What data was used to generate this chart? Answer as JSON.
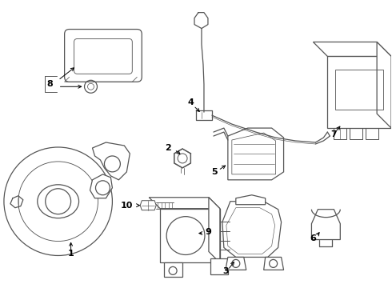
{
  "background_color": "#ffffff",
  "line_color": "#555555",
  "label_color": "#000000",
  "fig_w": 4.9,
  "fig_h": 3.6,
  "dpi": 100
}
